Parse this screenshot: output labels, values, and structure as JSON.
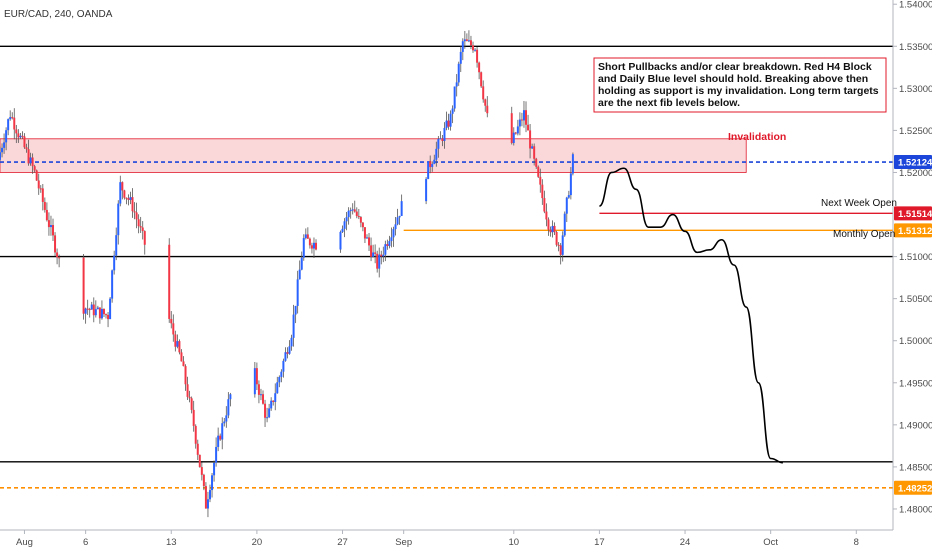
{
  "chart_data": {
    "type": "candlestick",
    "symbol_label": "EUR/CAD, 240, OANDA",
    "ylim": [
      1.4775,
      1.5405
    ],
    "y_ticks": [
      "1.54000",
      "1.53500",
      "1.53000",
      "1.52500",
      "1.52000",
      "1.51514",
      "1.51000",
      "1.50500",
      "1.50000",
      "1.49500",
      "1.49000",
      "1.48500",
      "1.48252",
      "1.48000"
    ],
    "x_ticks": [
      {
        "label": "Aug",
        "date": "2018-08-01"
      },
      {
        "label": "6",
        "date": "2018-08-06"
      },
      {
        "label": "13",
        "date": "2018-08-13"
      },
      {
        "label": "20",
        "date": "2018-08-20"
      },
      {
        "label": "27",
        "date": "2018-08-27"
      },
      {
        "label": "Sep",
        "date": "2018-09-01"
      },
      {
        "label": "10",
        "date": "2018-09-10"
      },
      {
        "label": "17",
        "date": "2018-09-17"
      },
      {
        "label": "24",
        "date": "2018-09-24"
      },
      {
        "label": "Oct",
        "date": "2018-10-01"
      },
      {
        "label": "8",
        "date": "2018-10-08"
      }
    ],
    "x_range": [
      "2018-07-30",
      "2018-10-11"
    ],
    "colors": {
      "up": "#2962ff",
      "down": "#f23645",
      "zone_fill": "#f5a9ae",
      "zone_border": "#e0192a",
      "projection": "#000000"
    },
    "price_path": [
      {
        "date": "2018-07-30",
        "price": 1.5215
      },
      {
        "date": "2018-07-31",
        "price": 1.527
      },
      {
        "date": "2018-08-02",
        "price": 1.52
      },
      {
        "date": "2018-08-04",
        "price": 1.5095
      },
      {
        "date": "2018-08-06",
        "price": 1.504
      },
      {
        "date": "2018-08-08",
        "price": 1.503
      },
      {
        "date": "2018-08-09",
        "price": 1.5185
      },
      {
        "date": "2018-08-10",
        "price": 1.516
      },
      {
        "date": "2018-08-13",
        "price": 1.5025
      },
      {
        "date": "2018-08-14",
        "price": 1.4975
      },
      {
        "date": "2018-08-15",
        "price": 1.49
      },
      {
        "date": "2018-08-16",
        "price": 1.4805
      },
      {
        "date": "2018-08-17",
        "price": 1.488
      },
      {
        "date": "2018-08-18",
        "price": 1.4935
      },
      {
        "date": "2018-08-20",
        "price": 1.496
      },
      {
        "date": "2018-08-21",
        "price": 1.4905
      },
      {
        "date": "2018-08-23",
        "price": 1.501
      },
      {
        "date": "2018-08-24",
        "price": 1.512
      },
      {
        "date": "2018-08-26",
        "price": 1.511
      },
      {
        "date": "2018-08-28",
        "price": 1.516
      },
      {
        "date": "2018-08-30",
        "price": 1.509
      },
      {
        "date": "2018-09-01",
        "price": 1.516
      },
      {
        "date": "2018-09-03",
        "price": 1.52
      },
      {
        "date": "2018-09-05",
        "price": 1.5265
      },
      {
        "date": "2018-09-06",
        "price": 1.5355
      },
      {
        "date": "2018-09-07",
        "price": 1.535
      },
      {
        "date": "2018-09-08",
        "price": 1.5265
      },
      {
        "date": "2018-09-10",
        "price": 1.5235
      },
      {
        "date": "2018-09-11",
        "price": 1.527
      },
      {
        "date": "2018-09-12",
        "price": 1.52
      },
      {
        "date": "2018-09-13",
        "price": 1.514
      },
      {
        "date": "2018-09-14",
        "price": 1.511
      },
      {
        "date": "2018-09-15",
        "price": 1.5215
      },
      {
        "date": "2018-09-16",
        "price": 1.516
      }
    ],
    "levels": [
      {
        "name": "resistance-line",
        "price": 1.535,
        "color": "#000000",
        "style": "solid",
        "from": "2018-07-30",
        "to": "right-edge"
      },
      {
        "name": "support-line",
        "price": 1.51,
        "color": "#000000",
        "style": "solid",
        "from": "2018-07-30",
        "to": "right-edge"
      },
      {
        "name": "lower-support-line",
        "price": 1.4856,
        "color": "#000000",
        "style": "solid",
        "from": "2018-07-30",
        "to": "right-edge"
      },
      {
        "name": "daily-blue-level",
        "price": 1.52124,
        "color": "#1c45d9",
        "style": "dashed",
        "from": "2018-07-30",
        "to": "right-edge"
      },
      {
        "name": "fib-level",
        "price": 1.48252,
        "color": "#ff8f00",
        "style": "dashed",
        "from": "2018-07-30",
        "to": "right-edge"
      },
      {
        "name": "next-week-open-line",
        "price": 1.51514,
        "color": "#e0192a",
        "style": "solid",
        "from": "2018-09-17",
        "to": "right-edge"
      },
      {
        "name": "monthly-open-line",
        "price": 1.51312,
        "color": "#ff9800",
        "style": "solid",
        "from": "2018-09-01",
        "to": "right-edge"
      }
    ],
    "zone": {
      "name": "red-h4-block",
      "from": "2018-07-30",
      "to": "2018-09-29",
      "top": 1.524,
      "bottom": 1.52
    },
    "projection_path": [
      {
        "date": "2018-09-17",
        "price": 1.516
      },
      {
        "date": "2018-09-18",
        "price": 1.52
      },
      {
        "date": "2018-09-19",
        "price": 1.5205
      },
      {
        "date": "2018-09-20",
        "price": 1.518
      },
      {
        "date": "2018-09-21",
        "price": 1.5135
      },
      {
        "date": "2018-09-22",
        "price": 1.5135
      },
      {
        "date": "2018-09-23",
        "price": 1.515
      },
      {
        "date": "2018-09-24",
        "price": 1.513
      },
      {
        "date": "2018-09-25",
        "price": 1.5105
      },
      {
        "date": "2018-09-26",
        "price": 1.5108
      },
      {
        "date": "2018-09-27",
        "price": 1.512
      },
      {
        "date": "2018-09-28",
        "price": 1.509
      },
      {
        "date": "2018-09-29",
        "price": 1.504
      },
      {
        "date": "2018-09-30",
        "price": 1.495
      },
      {
        "date": "2018-10-01",
        "price": 1.486
      },
      {
        "date": "2018-10-02",
        "price": 1.4855
      }
    ],
    "annotations": {
      "note_lines": [
        "Short Pullbacks and/or clear breakdown. Red H4 Block",
        "and Daily Blue level should hold. Breaking above then",
        "holding as support is my invalidation. Long term targets",
        "are the next fib levels below."
      ],
      "invalidation": "Invalidation",
      "next_week_open": "Next Week Open",
      "monthly_open": "Monthly Open"
    },
    "badges": [
      {
        "text": "1.52124",
        "price": 1.52124,
        "color": "#1c45d9"
      },
      {
        "text": "1.51514",
        "price": 1.51514,
        "color": "#e0192a"
      },
      {
        "text": "1.51312",
        "price": 1.51312,
        "color": "#ff9800"
      },
      {
        "text": "1.48252",
        "price": 1.48252,
        "color": "#ff9800"
      }
    ]
  }
}
